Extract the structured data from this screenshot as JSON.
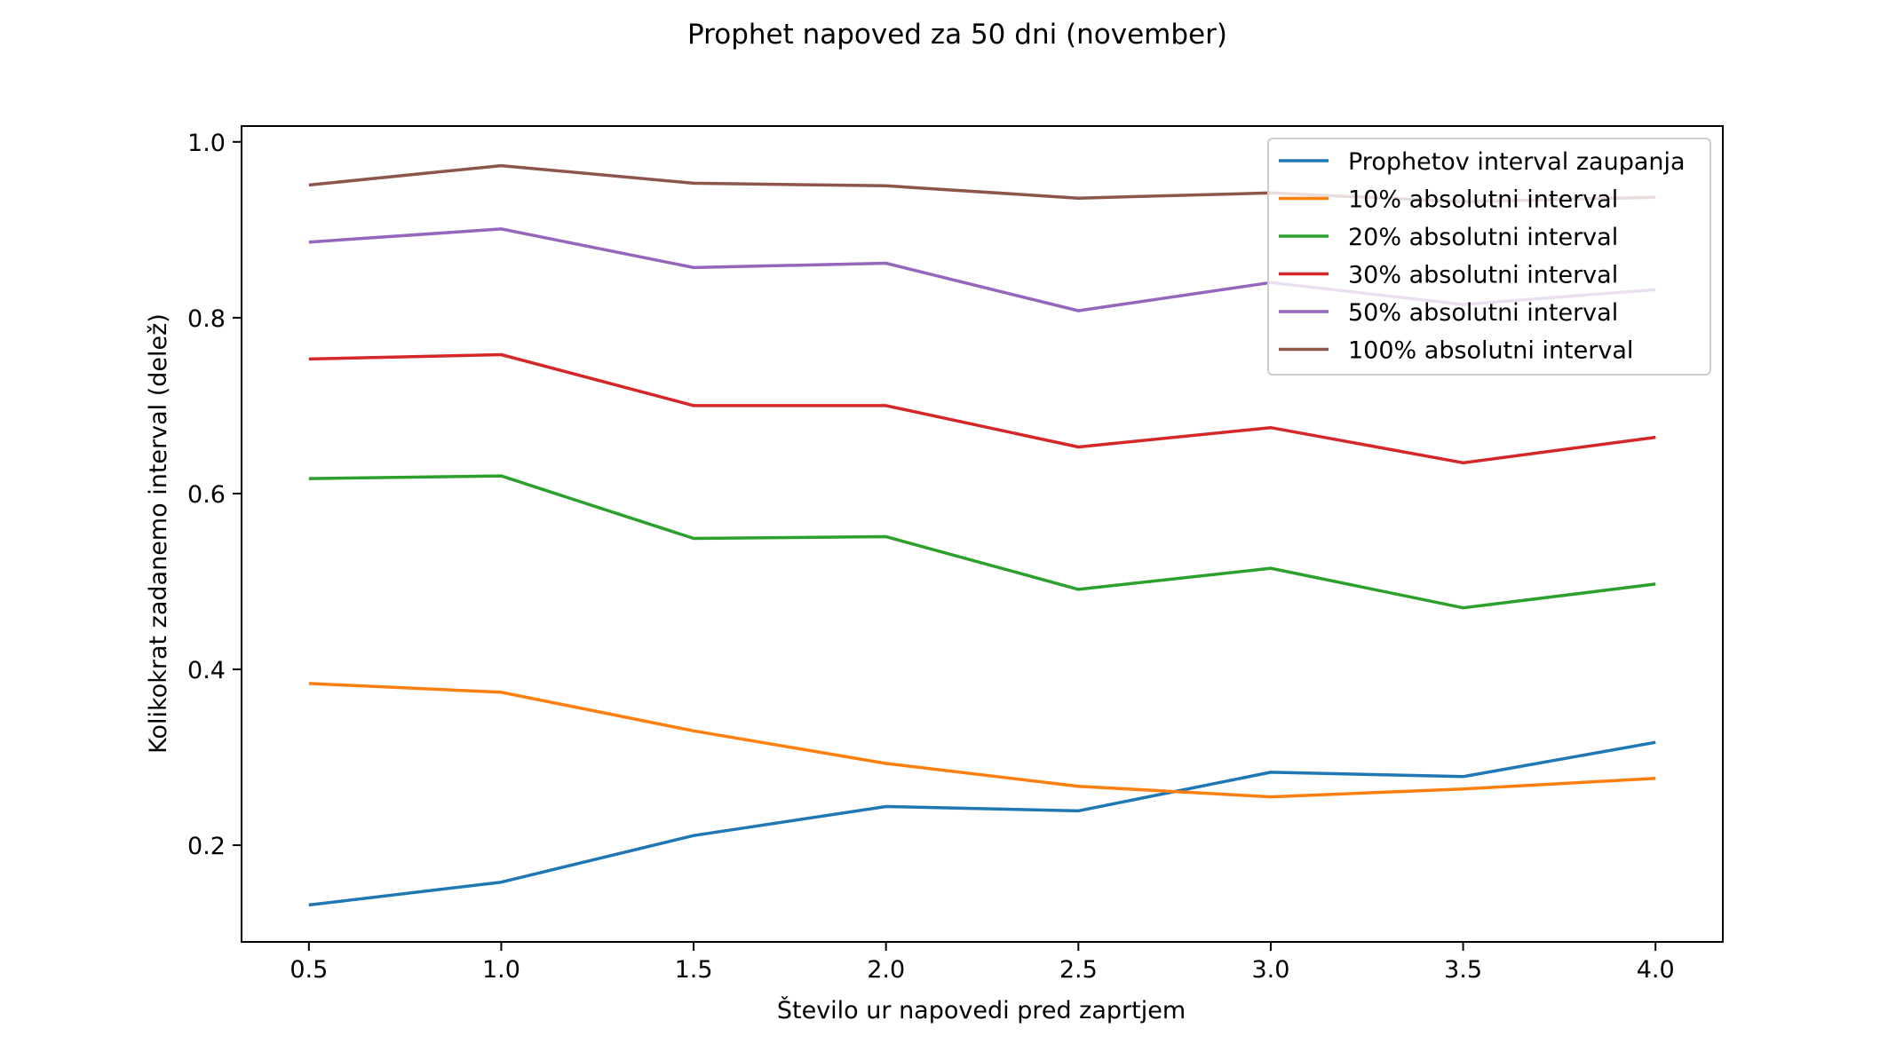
{
  "chart_data": {
    "type": "line",
    "title": "Prophet napoved za 50 dni (november)",
    "xlabel": "Število ur napovedi pred zaprtjem",
    "ylabel": "Kolikokrat zadanemo interval (delež)",
    "x": [
      0.5,
      1.0,
      1.5,
      2.0,
      2.5,
      3.0,
      3.5,
      4.0
    ],
    "xticks": [
      "0.5",
      "1.0",
      "1.5",
      "2.0",
      "2.5",
      "3.0",
      "3.5",
      "4.0"
    ],
    "yticks": [
      "0.2",
      "0.4",
      "0.6",
      "0.8",
      "1.0"
    ],
    "xlim": [
      0.325,
      4.175
    ],
    "ylim": [
      0.09,
      1.018
    ],
    "grid": false,
    "legend_position": "top-right",
    "series": [
      {
        "name": "Prophetov interval zaupanja",
        "color": "#1f77b4",
        "values": [
          0.132,
          0.158,
          0.211,
          0.244,
          0.239,
          0.283,
          0.278,
          0.317
        ]
      },
      {
        "name": "10% absolutni interval",
        "color": "#ff7f0e",
        "values": [
          0.384,
          0.374,
          0.33,
          0.293,
          0.267,
          0.255,
          0.264,
          0.276
        ]
      },
      {
        "name": "20% absolutni interval",
        "color": "#2ca02c",
        "values": [
          0.617,
          0.62,
          0.549,
          0.551,
          0.491,
          0.515,
          0.47,
          0.497
        ]
      },
      {
        "name": "30% absolutni interval",
        "color": "#d62728",
        "values": [
          0.753,
          0.758,
          0.7,
          0.7,
          0.653,
          0.675,
          0.635,
          0.664
        ]
      },
      {
        "name": "50% absolutni interval",
        "color": "#9467bd",
        "values": [
          0.886,
          0.901,
          0.857,
          0.862,
          0.808,
          0.84,
          0.815,
          0.832
        ]
      },
      {
        "name": "100% absolutni interval",
        "color": "#8c564b",
        "values": [
          0.951,
          0.973,
          0.953,
          0.95,
          0.936,
          0.942,
          0.932,
          0.937
        ]
      }
    ]
  }
}
